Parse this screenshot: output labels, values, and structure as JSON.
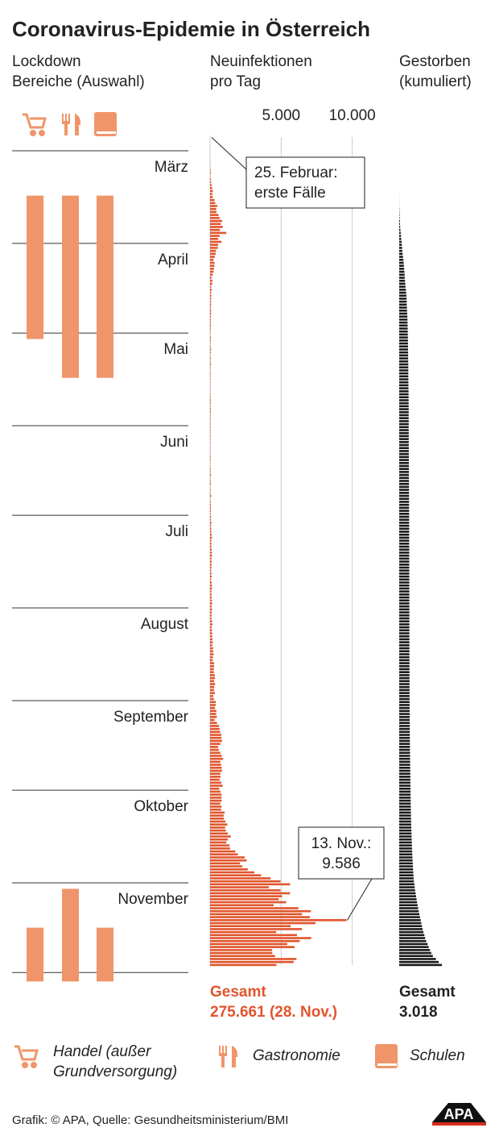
{
  "chart_data": {
    "type": "bar",
    "title": "Coronavirus-Epidemie in Österreich",
    "lockdown_header": [
      "Lockdown",
      "Bereiche (Auswahl)"
    ],
    "ylim": [
      0,
      280
    ],
    "yticks": [
      {
        "value": 5,
        "label": "März"
      },
      {
        "value": 36,
        "label": "April"
      },
      {
        "value": 66,
        "label": "Mai"
      },
      {
        "value": 97,
        "label": "Juni"
      },
      {
        "value": 127,
        "label": "Juli"
      },
      {
        "value": 158,
        "label": "August"
      },
      {
        "value": 189,
        "label": "September"
      },
      {
        "value": 219,
        "label": "Oktober"
      },
      {
        "value": 250,
        "label": "November"
      }
    ],
    "lockdowns": [
      {
        "name_lines": [
          "Handel (außer",
          "Grundversorgung)"
        ],
        "color": "#f0956a",
        "periods": [
          [
            20,
            68
          ],
          [
            265,
            283
          ]
        ]
      },
      {
        "name_lines": [
          "Gastronomie"
        ],
        "color": "#f0956a",
        "periods": [
          [
            20,
            81
          ],
          [
            252,
            283
          ]
        ]
      },
      {
        "name_lines": [
          "Schulen"
        ],
        "color": "#f0956a",
        "periods": [
          [
            20,
            81
          ],
          [
            265,
            283
          ]
        ]
      }
    ],
    "infections": {
      "header": [
        "Neuinfektionen",
        "pro Tag"
      ],
      "color": "#e0552d",
      "xlim": [
        0,
        12000
      ],
      "xticks": [
        {
          "value": 5000,
          "label": "5.000"
        },
        {
          "value": 10000,
          "label": "10.000"
        }
      ],
      "grid": true,
      "total_label": "Gesamt",
      "total_value": "275.661 (28. Nov.)",
      "values": [
        2,
        0,
        0,
        1,
        6,
        1,
        4,
        8,
        4,
        12,
        13,
        38,
        57,
        26,
        52,
        80,
        115,
        151,
        205,
        158,
        187,
        314,
        366,
        505,
        426,
        454,
        596,
        675,
        844,
        754,
        892,
        689,
        1141,
        668,
        564,
        805,
        568,
        542,
        418,
        396,
        336,
        241,
        314,
        314,
        277,
        246,
        185,
        106,
        160,
        154,
        79,
        118,
        77,
        85,
        78,
        68,
        75,
        63,
        76,
        80,
        54,
        56,
        51,
        64,
        52,
        37,
        30,
        60,
        55,
        29,
        47,
        73,
        48,
        32,
        59,
        43,
        62,
        33,
        28,
        43,
        31,
        40,
        24,
        29,
        29,
        20,
        37,
        38,
        54,
        45,
        39,
        51,
        56,
        33,
        38,
        30,
        41,
        32,
        33,
        25,
        38,
        30,
        34,
        25,
        32,
        22,
        28,
        38,
        39,
        24,
        23,
        51,
        45,
        64,
        30,
        47,
        59,
        26,
        37,
        41,
        80,
        29,
        47,
        55,
        59,
        61,
        40,
        68,
        60,
        99,
        68,
        82,
        88,
        112,
        135,
        89,
        99,
        87,
        116,
        127,
        139,
        94,
        121,
        101,
        96,
        80,
        100,
        110,
        71,
        113,
        135,
        137,
        94,
        103,
        112,
        132,
        148,
        118,
        136,
        119,
        116,
        99,
        145,
        167,
        121,
        141,
        152,
        148,
        172,
        193,
        155,
        210,
        216,
        253,
        194,
        189,
        283,
        287,
        270,
        267,
        330,
        349,
        282,
        355,
        300,
        280,
        336,
        226,
        274,
        409,
        393,
        350,
        449,
        435,
        477,
        316,
        490,
        624,
        669,
        714,
        787,
        801,
        846,
        722,
        562,
        613,
        714,
        815,
        919,
        722,
        773,
        818,
        839,
        719,
        745,
        671,
        790,
        886,
        640,
        730,
        810,
        806,
        817,
        714,
        806,
        773,
        1028,
        958,
        970,
        1087,
        1209,
        1058,
        1107,
        1244,
        1456,
        1245,
        1141,
        1366,
        1405,
        1774,
        1958,
        2435,
        2571,
        2106,
        2269,
        2652,
        3114,
        3590,
        4253,
        4957,
        5627,
        4135,
        4957,
        5627,
        5062,
        4829,
        5352,
        4473,
        6211,
        7092,
        6464,
        7019,
        9586,
        7414,
        5665,
        6464,
        4657,
        6112,
        7113,
        6305,
        5427,
        5942,
        4368,
        4377,
        4573,
        6080,
        5880,
        4664
      ]
    },
    "deaths": {
      "header": [
        "Gestorben",
        "(kumuliert)"
      ],
      "color": "#1a1a1a",
      "total_label": "Gesamt",
      "total_value": "3.018",
      "values": [
        0,
        0,
        0,
        0,
        0,
        0,
        0,
        0,
        0,
        0,
        0,
        0,
        0,
        0,
        0,
        0,
        1,
        1,
        1,
        3,
        4,
        6,
        6,
        8,
        16,
        21,
        28,
        30,
        49,
        58,
        68,
        86,
        108,
        128,
        146,
        168,
        186,
        204,
        220,
        243,
        273,
        295,
        319,
        337,
        350,
        368,
        384,
        393,
        410,
        431,
        443,
        470,
        491,
        510,
        522,
        530,
        536,
        549,
        555,
        569,
        580,
        584,
        589,
        596,
        600,
        606,
        608,
        615,
        620,
        623,
        624,
        626,
        629,
        632,
        633,
        635,
        643,
        644,
        645,
        646,
        647,
        650,
        652,
        653,
        655,
        660,
        663,
        665,
        666,
        668,
        668,
        669,
        670,
        670,
        671,
        672,
        672,
        672,
        673,
        673,
        674,
        674,
        676,
        677,
        678,
        679,
        679,
        680,
        681,
        683,
        684,
        686,
        688,
        688,
        689,
        690,
        691,
        692,
        693,
        694,
        695,
        697,
        697,
        698,
        699,
        700,
        703,
        704,
        705,
        705,
        706,
        706,
        706,
        706,
        707,
        707,
        708,
        709,
        709,
        710,
        710,
        710,
        711,
        711,
        711,
        711,
        712,
        712,
        713,
        713,
        714,
        715,
        716,
        717,
        717,
        718,
        718,
        719,
        719,
        719,
        719,
        719,
        720,
        720,
        720,
        720,
        721,
        722,
        722,
        723,
        723,
        723,
        724,
        724,
        725,
        725,
        726,
        726,
        727,
        728,
        729,
        729,
        730,
        730,
        731,
        731,
        732,
        733,
        733,
        734,
        735,
        735,
        737,
        738,
        740,
        741,
        743,
        745,
        747,
        749,
        751,
        753,
        755,
        758,
        760,
        762,
        765,
        767,
        770,
        773,
        776,
        778,
        781,
        784,
        787,
        790,
        793,
        796,
        799,
        802,
        806,
        810,
        813,
        816,
        820,
        824,
        829,
        834,
        839,
        844,
        850,
        857,
        864,
        871,
        878,
        885,
        893,
        901,
        909,
        918,
        927,
        937,
        947,
        958,
        970,
        982,
        995,
        1010,
        1025,
        1042,
        1074,
        1096,
        1125,
        1162,
        1196,
        1229,
        1262,
        1303,
        1339,
        1383,
        1426,
        1471,
        1520,
        1564,
        1614,
        1658,
        1712,
        1780,
        1836,
        1901,
        2009,
        2087,
        2178,
        2269,
        2381,
        2595,
        2796,
        3018
      ]
    },
    "annotations": [
      {
        "lines": [
          "25. Februar:",
          "erste Fälle"
        ],
        "day": 0
      },
      {
        "lines": [
          "13. Nov.:",
          "9.586"
        ],
        "day": 262
      }
    ],
    "source": "Grafik: © APA, Quelle: Gesundheitsministerium/BMI",
    "logo": "APA"
  }
}
